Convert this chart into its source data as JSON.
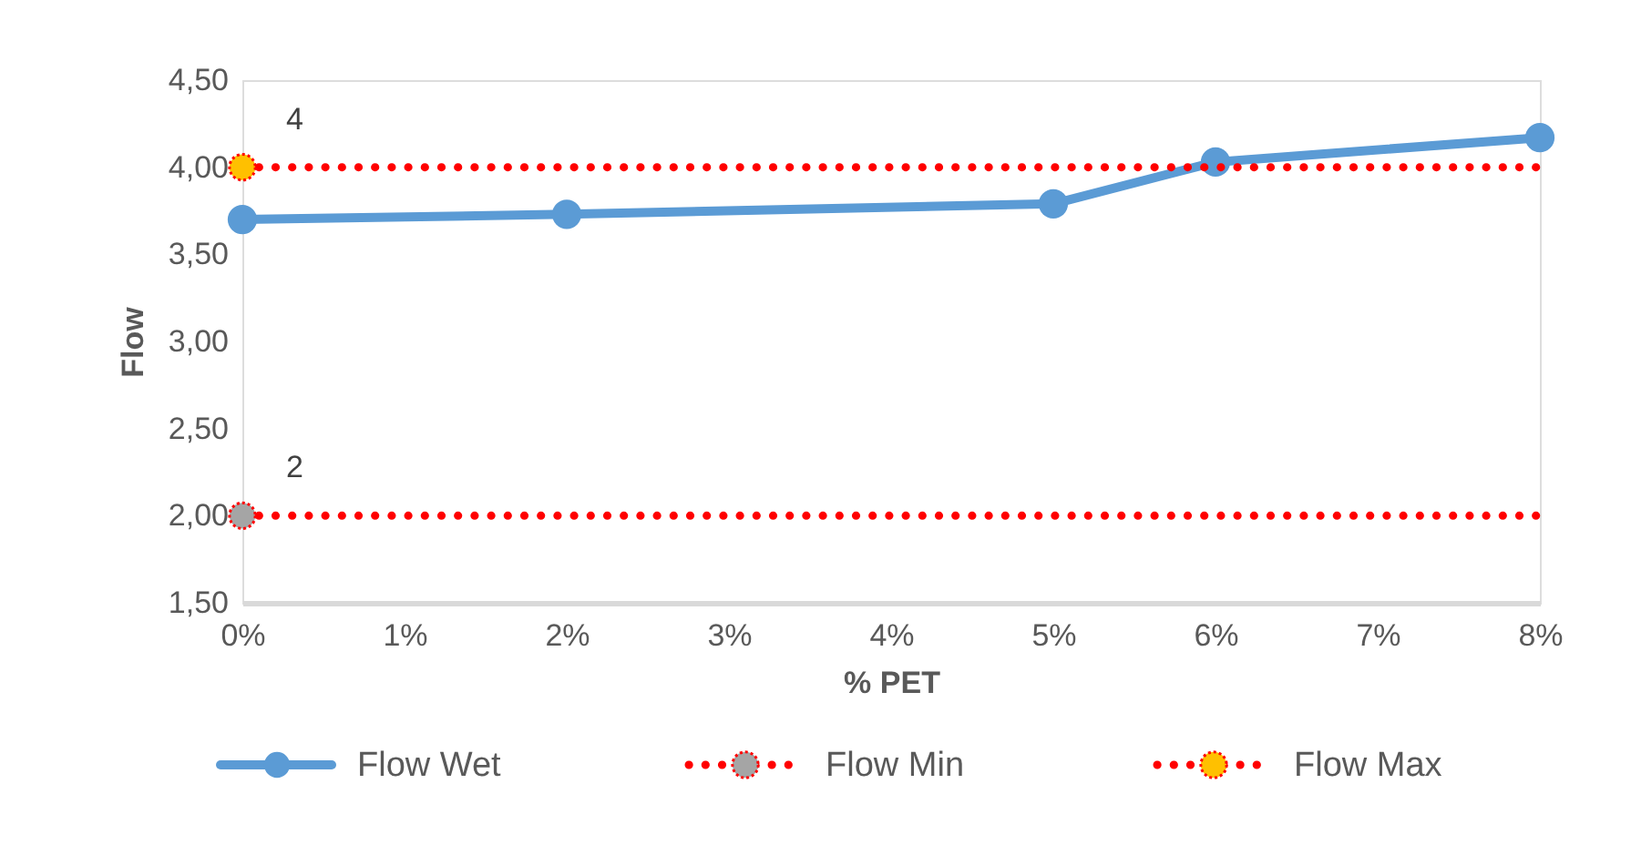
{
  "chart_data": {
    "type": "line",
    "xlabel": "% PET",
    "ylabel": "Flow",
    "xlim": [
      0,
      8
    ],
    "xticks": [
      {
        "value": 0,
        "label": "0%"
      },
      {
        "value": 1,
        "label": "1%"
      },
      {
        "value": 2,
        "label": "2%"
      },
      {
        "value": 3,
        "label": "3%"
      },
      {
        "value": 4,
        "label": "4%"
      },
      {
        "value": 5,
        "label": "5%"
      },
      {
        "value": 6,
        "label": "6%"
      },
      {
        "value": 7,
        "label": "7%"
      },
      {
        "value": 8,
        "label": "8%"
      }
    ],
    "ylim": [
      1.5,
      4.5
    ],
    "yticks": [
      {
        "value": 1.5,
        "label": "1,50"
      },
      {
        "value": 2,
        "label": "2,00"
      },
      {
        "value": 2.5,
        "label": "2,50"
      },
      {
        "value": 3,
        "label": "3,00"
      },
      {
        "value": 3.5,
        "label": "3,50"
      },
      {
        "value": 4,
        "label": "4,00"
      },
      {
        "value": 4.5,
        "label": "4,50"
      }
    ],
    "grid": false,
    "legend": "bottom",
    "series": [
      {
        "name": "Flow Wet",
        "color": "#5b9bd5",
        "x": [
          0,
          2,
          5,
          6,
          8
        ],
        "values": [
          3.7,
          3.73,
          3.79,
          4.03,
          4.17
        ],
        "marker": "circle",
        "line_style": "solid"
      },
      {
        "name": "Flow Min",
        "color": "#ff0000",
        "x": [
          0,
          8
        ],
        "values": [
          2,
          2
        ],
        "marker": "none",
        "line_style": "dotted"
      },
      {
        "type": "scatter",
        "color": "#a5a5a5",
        "x": [
          0
        ],
        "values": [
          2
        ],
        "marker": "circle"
      },
      {
        "name": "Flow Max",
        "color": "#ff0000",
        "x": [
          0,
          8
        ],
        "values": [
          4,
          4
        ],
        "marker": "none",
        "line_style": "dotted"
      },
      {
        "type": "scatter",
        "color": "#ffc000",
        "x": [
          0
        ],
        "values": [
          4
        ],
        "marker": "circle"
      }
    ],
    "annotations": [
      {
        "text": "2",
        "x": 0,
        "y": 2
      },
      {
        "text": "4",
        "x": 0,
        "y": 4
      }
    ]
  }
}
